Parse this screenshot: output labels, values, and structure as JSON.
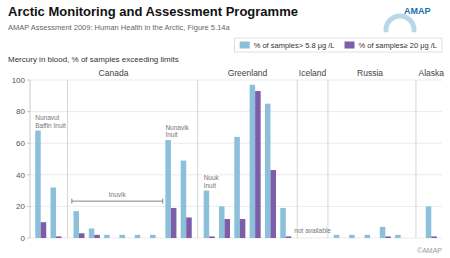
{
  "chart_data": {
    "type": "bar",
    "title": "Arctic Monitoring and Assessment Programme",
    "subtitle": "AMAP Assessment 2009: Human Health in the Arctic, Figure 5.14a",
    "ylabel": "Mercury in blood, % of samples exceeding limits",
    "categories": [
      null,
      null,
      null,
      null,
      null,
      null,
      null,
      null,
      null,
      null,
      null,
      null,
      null,
      null,
      null,
      null,
      null,
      null,
      null,
      null,
      null,
      null
    ],
    "series": [
      {
        "name": "% of samples> 5.8 μg /L",
        "color": "#8bbfda",
        "values": [
          68,
          32,
          17,
          6,
          2,
          2,
          2,
          2,
          62,
          49,
          30,
          20,
          64,
          97,
          85,
          19,
          2,
          2,
          2,
          7,
          2,
          20
        ]
      },
      {
        "name": "% of samples≥ 20 μg /L",
        "color": "#7b5ea7",
        "values": [
          10,
          1,
          3,
          2,
          0,
          0,
          0,
          0,
          19,
          13,
          1,
          12,
          12,
          93,
          43,
          1,
          0,
          0,
          0,
          1,
          0,
          1
        ]
      }
    ],
    "ylim": [
      0,
      100
    ],
    "yticks": [
      0,
      20,
      40,
      60,
      80,
      100
    ],
    "grid": true,
    "legend": "upper right",
    "region_labels": [
      "Canada",
      "Greenland",
      "Iceland",
      "Russia",
      "Alaska"
    ],
    "annotations": [
      "Nunavut\nBaffin Inuit",
      "Inuvik",
      "Nunavik\nInuit",
      "Nuuk\nInuit",
      "not available"
    ],
    "logo_text": "AMAP",
    "credit": "©AMAP"
  }
}
